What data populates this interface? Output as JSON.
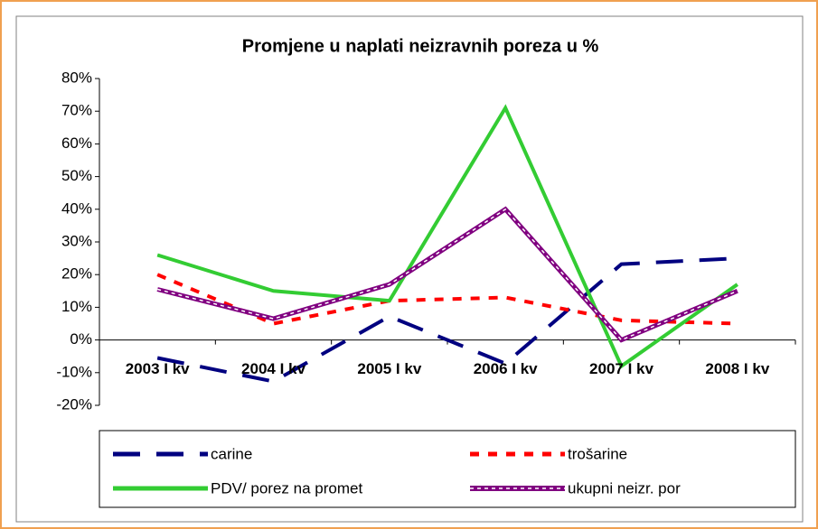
{
  "chart_data": {
    "type": "line",
    "title": "Promjene u naplati neizravnih poreza u %",
    "categories": [
      "2003 I kv",
      "2004 I kv",
      "2005 I kv",
      "2006 I kv",
      "2007 I kv",
      "2008 I kv"
    ],
    "series": [
      {
        "name": "carine",
        "color": "#000080",
        "values": [
          -5.5,
          -12.7,
          7.2,
          -7.2,
          23.2,
          25
        ]
      },
      {
        "name": "trošarine",
        "color": "#ff0000",
        "values": [
          20,
          5,
          12,
          13,
          6,
          5
        ]
      },
      {
        "name": "PDV/ porez na promet",
        "color": "#33cc33",
        "values": [
          26,
          15,
          12,
          71,
          -8,
          17
        ]
      },
      {
        "name": "ukupni neizr. por",
        "color": "#800080",
        "values": [
          15.5,
          6.5,
          17,
          40,
          0,
          15
        ]
      }
    ],
    "ylim": [
      -20,
      80
    ],
    "yticks": [
      {
        "value": -20,
        "label": "-20%"
      },
      {
        "value": -10,
        "label": "-10%"
      },
      {
        "value": 0,
        "label": "0%"
      },
      {
        "value": 10,
        "label": "10%"
      },
      {
        "value": 20,
        "label": "20%"
      },
      {
        "value": 30,
        "label": "30%"
      },
      {
        "value": 40,
        "label": "40%"
      },
      {
        "value": 50,
        "label": "50%"
      },
      {
        "value": 60,
        "label": "60%"
      },
      {
        "value": 70,
        "label": "70%"
      },
      {
        "value": 80,
        "label": "80%"
      }
    ],
    "legend": "bottom"
  }
}
